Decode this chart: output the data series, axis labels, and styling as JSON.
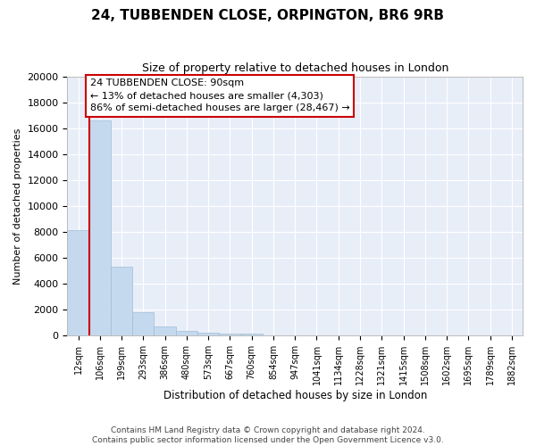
{
  "title": "24, TUBBENDEN CLOSE, ORPINGTON, BR6 9RB",
  "subtitle": "Size of property relative to detached houses in London",
  "xlabel": "Distribution of detached houses by size in London",
  "ylabel": "Number of detached properties",
  "bar_color": "#c5d9ee",
  "bar_edge_color": "#9dbdd8",
  "background_color": "#e8eef8",
  "grid_color": "#ffffff",
  "annotation_box_color": "#cc0000",
  "property_line_color": "#cc0000",
  "annotation_line1": "24 TUBBENDEN CLOSE: 90sqm",
  "annotation_line2": "← 13% of detached houses are smaller (4,303)",
  "annotation_line3": "86% of semi-detached houses are larger (28,467) →",
  "categories": [
    "12sqm",
    "106sqm",
    "199sqm",
    "293sqm",
    "386sqm",
    "480sqm",
    "573sqm",
    "667sqm",
    "760sqm",
    "854sqm",
    "947sqm",
    "1041sqm",
    "1134sqm",
    "1228sqm",
    "1321sqm",
    "1415sqm",
    "1508sqm",
    "1602sqm",
    "1695sqm",
    "1789sqm",
    "1882sqm"
  ],
  "values": [
    8150,
    16600,
    5300,
    1800,
    700,
    330,
    200,
    150,
    130,
    0,
    0,
    0,
    0,
    0,
    0,
    0,
    0,
    0,
    0,
    0,
    0
  ],
  "ylim": [
    0,
    20000
  ],
  "yticks": [
    0,
    2000,
    4000,
    6000,
    8000,
    10000,
    12000,
    14000,
    16000,
    18000,
    20000
  ],
  "property_line_bar_index": 0,
  "footer_line1": "Contains HM Land Registry data © Crown copyright and database right 2024.",
  "footer_line2": "Contains public sector information licensed under the Open Government Licence v3.0."
}
